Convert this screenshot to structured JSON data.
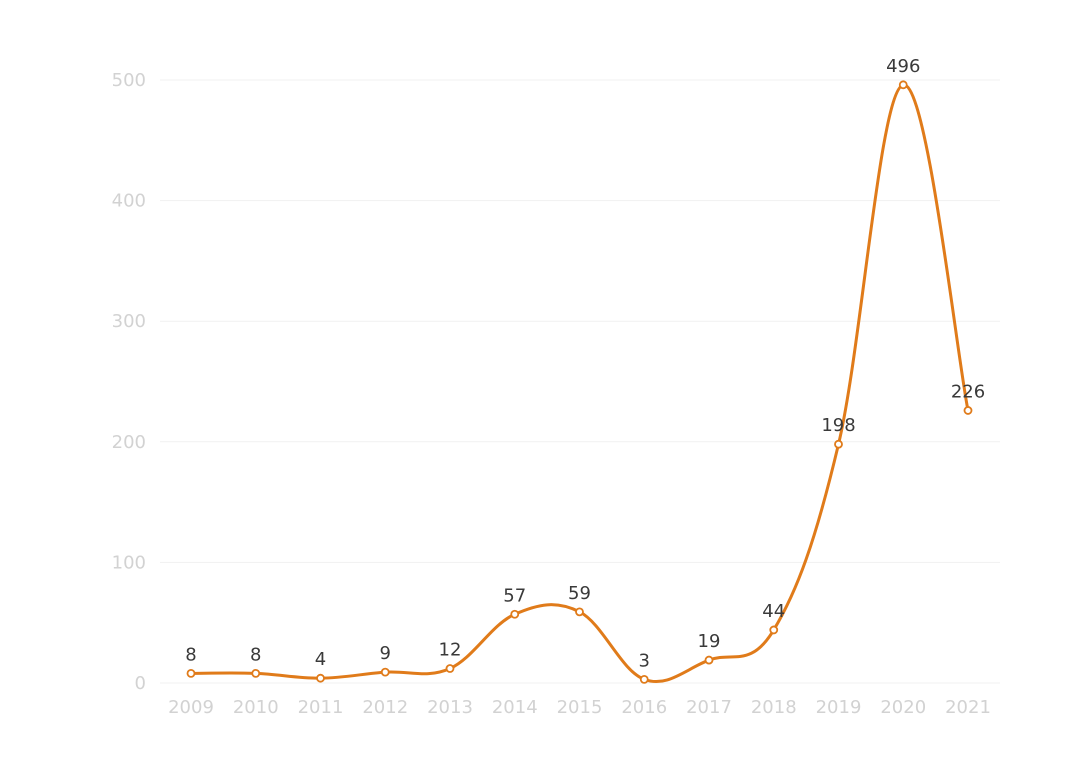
{
  "chart_data": {
    "type": "line",
    "title": "",
    "xlabel": "",
    "ylabel": "",
    "x": [
      "2009",
      "2010",
      "2011",
      "2012",
      "2013",
      "2014",
      "2015",
      "2016",
      "2017",
      "2018",
      "2019",
      "2020",
      "2021"
    ],
    "series": [
      {
        "values": [
          8,
          8,
          4,
          9,
          12,
          57,
          59,
          3,
          19,
          44,
          198,
          496,
          226
        ]
      }
    ],
    "y_ticks": [
      0,
      100,
      200,
      300,
      400,
      500
    ],
    "ylim": [
      0,
      500
    ],
    "grid": true,
    "smooth": true,
    "data_labels": true,
    "colors": {
      "line": "#e07b1a",
      "marker_fill": "#ffffff",
      "grid": "#f1f1f1",
      "tick_text": "#d2d2d2",
      "label_text": "#3a3a3a"
    }
  }
}
